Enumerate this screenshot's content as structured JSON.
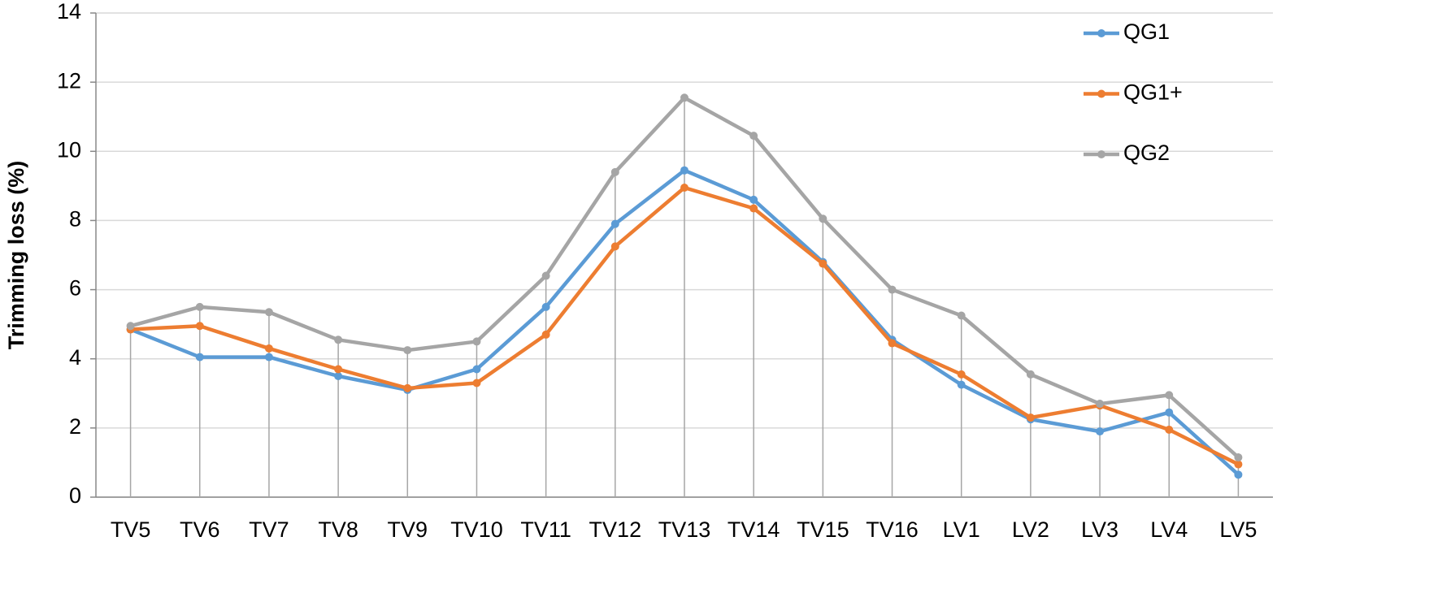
{
  "chart_data": {
    "type": "line",
    "y_label": "Trimming loss (%)",
    "categories": [
      "TV5",
      "TV6",
      "TV7",
      "TV8",
      "TV9",
      "TV10",
      "TV11",
      "TV12",
      "TV13",
      "TV14",
      "TV15",
      "TV16",
      "LV1",
      "LV2",
      "LV3",
      "LV4",
      "LV5"
    ],
    "series": [
      {
        "name": "QG1",
        "color": "#5b9bd5",
        "values": [
          4.85,
          4.05,
          4.05,
          3.5,
          3.1,
          3.7,
          5.5,
          7.9,
          9.45,
          8.6,
          6.8,
          4.55,
          3.25,
          2.25,
          1.9,
          2.45,
          0.65
        ]
      },
      {
        "name": "QG1+",
        "color": "#ed7d31",
        "values": [
          4.85,
          4.95,
          4.3,
          3.7,
          3.15,
          3.3,
          4.7,
          7.25,
          8.95,
          8.35,
          6.75,
          4.45,
          3.55,
          2.3,
          2.65,
          1.95,
          0.95
        ]
      },
      {
        "name": "QG2",
        "color": "#a5a5a5",
        "values": [
          4.95,
          5.5,
          5.35,
          4.55,
          4.25,
          4.5,
          6.4,
          9.4,
          11.55,
          10.45,
          8.05,
          6.0,
          5.25,
          3.55,
          2.7,
          2.95,
          1.15
        ]
      }
    ],
    "ylim": [
      0,
      14
    ],
    "yticks": [
      0,
      2,
      4,
      6,
      8,
      10,
      12,
      14
    ],
    "grid": true,
    "drop_lines": true,
    "legend": "upper right"
  }
}
